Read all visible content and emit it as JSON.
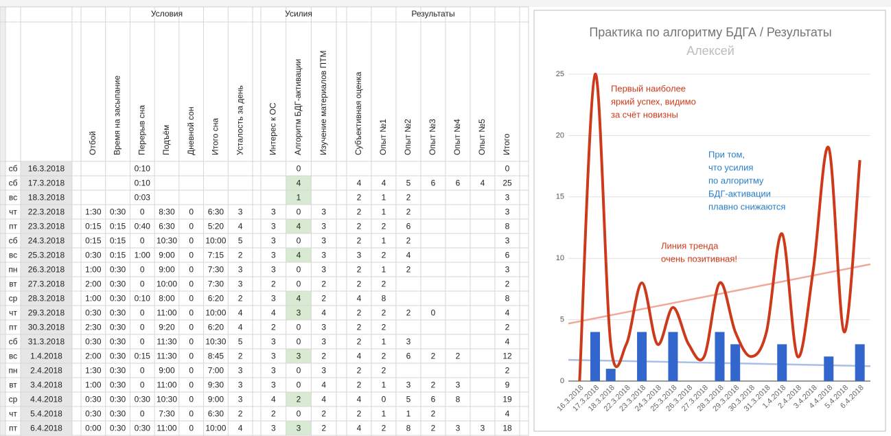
{
  "table": {
    "groups": [
      "Условия",
      "Усилия",
      "Результаты"
    ],
    "headers": [
      "Отбой",
      "Время на засыпание",
      "Перерыв сна",
      "Подъём",
      "Дневной сон",
      "Итого сна",
      "Усталость за день",
      "Интерес к ОС",
      "Алгоритм БДГ-активации",
      "Изучение материалов ПТМ",
      "Субъективная оценка",
      "Опыт №1",
      "Опыт №2",
      "Опыт №3",
      "Опыт №4",
      "Опыт №5",
      "Итого"
    ],
    "weekend_days": [
      "сб",
      "вс"
    ],
    "highlight_color": "#d9ead3",
    "rows": [
      [
        "сб",
        "16.3.2018",
        null,
        null,
        "0:10",
        null,
        null,
        null,
        null,
        null,
        0,
        null,
        null,
        null,
        null,
        null,
        null,
        null,
        0
      ],
      [
        "сб",
        "17.3.2018",
        null,
        null,
        "0:10",
        null,
        null,
        null,
        null,
        null,
        4,
        null,
        4,
        4,
        5,
        6,
        6,
        4,
        25
      ],
      [
        "вс",
        "18.3.2018",
        null,
        null,
        "0:03",
        null,
        null,
        null,
        null,
        null,
        1,
        null,
        2,
        1,
        2,
        null,
        null,
        null,
        3
      ],
      [
        "чт",
        "22.3.2018",
        "1:30",
        "0:30",
        0,
        "8:30",
        0,
        "6:30",
        3,
        3,
        0,
        3,
        2,
        1,
        2,
        null,
        null,
        null,
        3
      ],
      [
        "пт",
        "23.3.2018",
        "0:15",
        "0:15",
        "0:40",
        "6:30",
        0,
        "5:20",
        4,
        3,
        4,
        3,
        2,
        2,
        6,
        null,
        null,
        null,
        8
      ],
      [
        "сб",
        "24.3.2018",
        "0:15",
        "0:15",
        0,
        "10:30",
        0,
        "10:00",
        5,
        3,
        0,
        3,
        2,
        1,
        2,
        null,
        null,
        null,
        3
      ],
      [
        "вс",
        "25.3.2018",
        "0:30",
        "0:15",
        "1:00",
        "9:00",
        0,
        "7:15",
        2,
        3,
        4,
        3,
        3,
        2,
        4,
        null,
        null,
        null,
        6
      ],
      [
        "пн",
        "26.3.2018",
        "1:00",
        "0:30",
        0,
        "9:00",
        0,
        "7:30",
        3,
        3,
        0,
        3,
        2,
        1,
        2,
        null,
        null,
        null,
        3
      ],
      [
        "вт",
        "27.3.2018",
        "2:00",
        "0:30",
        0,
        "10:00",
        0,
        "7:30",
        3,
        2,
        0,
        2,
        2,
        2,
        null,
        null,
        null,
        null,
        2
      ],
      [
        "ср",
        "28.3.2018",
        "1:00",
        "0:30",
        "0:10",
        "8:00",
        0,
        "6:20",
        2,
        3,
        4,
        2,
        4,
        8,
        null,
        null,
        null,
        null,
        8
      ],
      [
        "чт",
        "29.3.2018",
        "0:30",
        "0:30",
        0,
        "11:00",
        0,
        "10:00",
        4,
        4,
        3,
        4,
        2,
        2,
        2,
        0,
        null,
        null,
        4
      ],
      [
        "пт",
        "30.3.2018",
        "2:30",
        "0:30",
        0,
        "9:20",
        0,
        "6:20",
        4,
        2,
        0,
        3,
        2,
        2,
        null,
        null,
        null,
        null,
        2
      ],
      [
        "сб",
        "31.3.2018",
        "0:30",
        "0:30",
        0,
        "11:30",
        0,
        "10:30",
        5,
        3,
        0,
        3,
        2,
        1,
        3,
        null,
        null,
        null,
        4
      ],
      [
        "вс",
        "1.4.2018",
        "2:00",
        "0:30",
        "0:15",
        "11:30",
        0,
        "8:45",
        2,
        3,
        3,
        2,
        4,
        2,
        6,
        2,
        2,
        null,
        12
      ],
      [
        "пн",
        "2.4.2018",
        "1:30",
        "0:30",
        0,
        "9:00",
        0,
        "7:00",
        3,
        3,
        0,
        3,
        2,
        2,
        null,
        null,
        null,
        null,
        2
      ],
      [
        "вт",
        "3.4.2018",
        "1:00",
        "0:30",
        0,
        "11:00",
        0,
        "9:30",
        3,
        3,
        0,
        4,
        2,
        1,
        3,
        2,
        3,
        null,
        9
      ],
      [
        "ср",
        "4.4.2018",
        "0:30",
        "0:30",
        "0:30",
        "10:30",
        0,
        "9:00",
        3,
        4,
        2,
        4,
        4,
        0,
        5,
        6,
        8,
        null,
        19
      ],
      [
        "чт",
        "5.4.2018",
        "0:30",
        "0:30",
        0,
        "7:30",
        0,
        "6:30",
        2,
        2,
        0,
        2,
        2,
        1,
        1,
        2,
        null,
        null,
        4
      ],
      [
        "пт",
        "6.4.2018",
        "0:00",
        "0:30",
        "0:30",
        "11:00",
        0,
        "10:00",
        4,
        3,
        3,
        2,
        4,
        2,
        8,
        2,
        3,
        3,
        18
      ]
    ]
  },
  "chart_data": {
    "type": "combo",
    "title": "Практика по алгоритму БДГА / Результаты",
    "subtitle": "Алексей",
    "categories": [
      "16.3.2018",
      "17.3.2018",
      "18.3.2018",
      "22.3.2018",
      "23.3.2018",
      "24.3.2018",
      "25.3.2018",
      "26.3.2018",
      "27.3.2018",
      "28.3.2018",
      "29.3.2018",
      "30.3.2018",
      "31.3.2018",
      "1.4.2018",
      "2.4.2018",
      "3.4.2018",
      "4.4.2018",
      "5.4.2018",
      "6.4.2018"
    ],
    "series": [
      {
        "type": "line",
        "color": "#cc3a1b",
        "trend_color": "#f0a898",
        "values": [
          0,
          25,
          3,
          3,
          8,
          3,
          6,
          3,
          2,
          8,
          4,
          2,
          4,
          12,
          2,
          9,
          19,
          4,
          18
        ]
      },
      {
        "type": "bar",
        "color": "#3366cc",
        "trend_color": "#a9bfe8",
        "values": [
          0,
          4,
          1,
          0,
          4,
          0,
          4,
          0,
          0,
          4,
          3,
          0,
          0,
          3,
          0,
          0,
          2,
          0,
          3
        ]
      }
    ],
    "ylim": [
      0,
      25
    ],
    "yticks": [
      0,
      5,
      10,
      15,
      20,
      25
    ],
    "grid": true,
    "trendlines": true,
    "annotations": [
      {
        "color": "#cc3a1b",
        "lines": [
          "Первый наиболее",
          "яркий успех, видимо",
          "за счёт новизны"
        ]
      },
      {
        "color": "#2a7ec8",
        "lines": [
          "При том,",
          "что усилия",
          "по алгоритму",
          "БДГ-активации",
          "плавно снижаются"
        ]
      },
      {
        "color": "#cc3a1b",
        "lines": [
          "Линия тренда",
          "очень позитивная!"
        ]
      }
    ]
  }
}
